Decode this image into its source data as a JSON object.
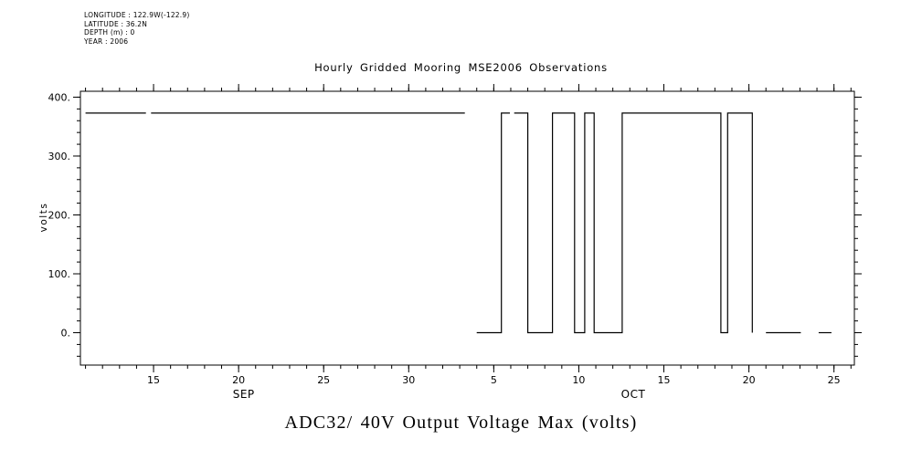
{
  "meta": {
    "lines": [
      "LONGITUDE : 122.9W(-122.9)",
      "LATITUDE : 36.2N",
      "DEPTH (m) : 0",
      "YEAR : 2006"
    ]
  },
  "title": "Hourly Gridded Mooring MSE2006 Observations",
  "bottom_title": "ADC32/ 40V Output Voltage Max (volts)",
  "colors": {
    "background": "#ffffff",
    "foreground": "#000000"
  },
  "chart_data": {
    "type": "line",
    "title": "Hourly Gridded Mooring MSE2006 Observations",
    "subtitle": "ADC32/ 40V Output Voltage Max (volts)",
    "ylabel": "volts",
    "grid": false,
    "legend": "none",
    "line_color": "#000000",
    "x_unit_note": "days since Sep 10, 2006 (Sep 15 = 5, Oct 5 = 25)",
    "x_axis": {
      "domain": [
        0.7,
        46.2
      ],
      "minor_tick_step": 1,
      "major_ticks": [
        {
          "pos": 5,
          "label": "15"
        },
        {
          "pos": 10,
          "label": "20"
        },
        {
          "pos": 15,
          "label": "25"
        },
        {
          "pos": 20,
          "label": "30"
        },
        {
          "pos": 25,
          "label": "5"
        },
        {
          "pos": 30,
          "label": "10"
        },
        {
          "pos": 35,
          "label": "15"
        },
        {
          "pos": 40,
          "label": "20"
        },
        {
          "pos": 45,
          "label": "25"
        }
      ],
      "month_labels": [
        {
          "pos": 10.3,
          "label": "SEP"
        },
        {
          "pos": 33.2,
          "label": "OCT"
        }
      ]
    },
    "y_axis": {
      "domain": [
        -55,
        410
      ],
      "minor_tick_step": 20,
      "major_ticks": [
        {
          "value": 0,
          "label": "0."
        },
        {
          "value": 100,
          "label": "100."
        },
        {
          "value": 200,
          "label": "200."
        },
        {
          "value": 300,
          "label": "300."
        },
        {
          "value": 400,
          "label": "400."
        }
      ]
    },
    "series": [
      {
        "name": "ADC32/ 40V Output Voltage Max",
        "high_value_volts": 373,
        "low_value_volts": 0,
        "polylines": [
          [
            [
              1.0,
              373
            ],
            [
              4.55,
              373
            ]
          ],
          [
            [
              4.85,
              373
            ],
            [
              23.3,
              373
            ]
          ],
          [
            [
              24.0,
              0
            ],
            [
              25.45,
              0
            ],
            [
              25.45,
              373
            ],
            [
              25.95,
              373
            ]
          ],
          [
            [
              26.2,
              373
            ],
            [
              27.0,
              373
            ],
            [
              27.0,
              0
            ],
            [
              28.45,
              0
            ],
            [
              28.45,
              373
            ],
            [
              29.75,
              373
            ],
            [
              29.75,
              0
            ],
            [
              30.35,
              0
            ],
            [
              30.35,
              373
            ],
            [
              30.9,
              373
            ],
            [
              30.9,
              0
            ],
            [
              32.55,
              0
            ],
            [
              32.55,
              373
            ],
            [
              38.35,
              373
            ],
            [
              38.35,
              0
            ],
            [
              38.75,
              0
            ],
            [
              38.75,
              373
            ],
            [
              40.2,
              373
            ],
            [
              40.2,
              0
            ]
          ],
          [
            [
              41.0,
              0
            ],
            [
              43.05,
              0
            ]
          ],
          [
            [
              44.1,
              0
            ],
            [
              44.85,
              0
            ]
          ]
        ]
      }
    ]
  }
}
